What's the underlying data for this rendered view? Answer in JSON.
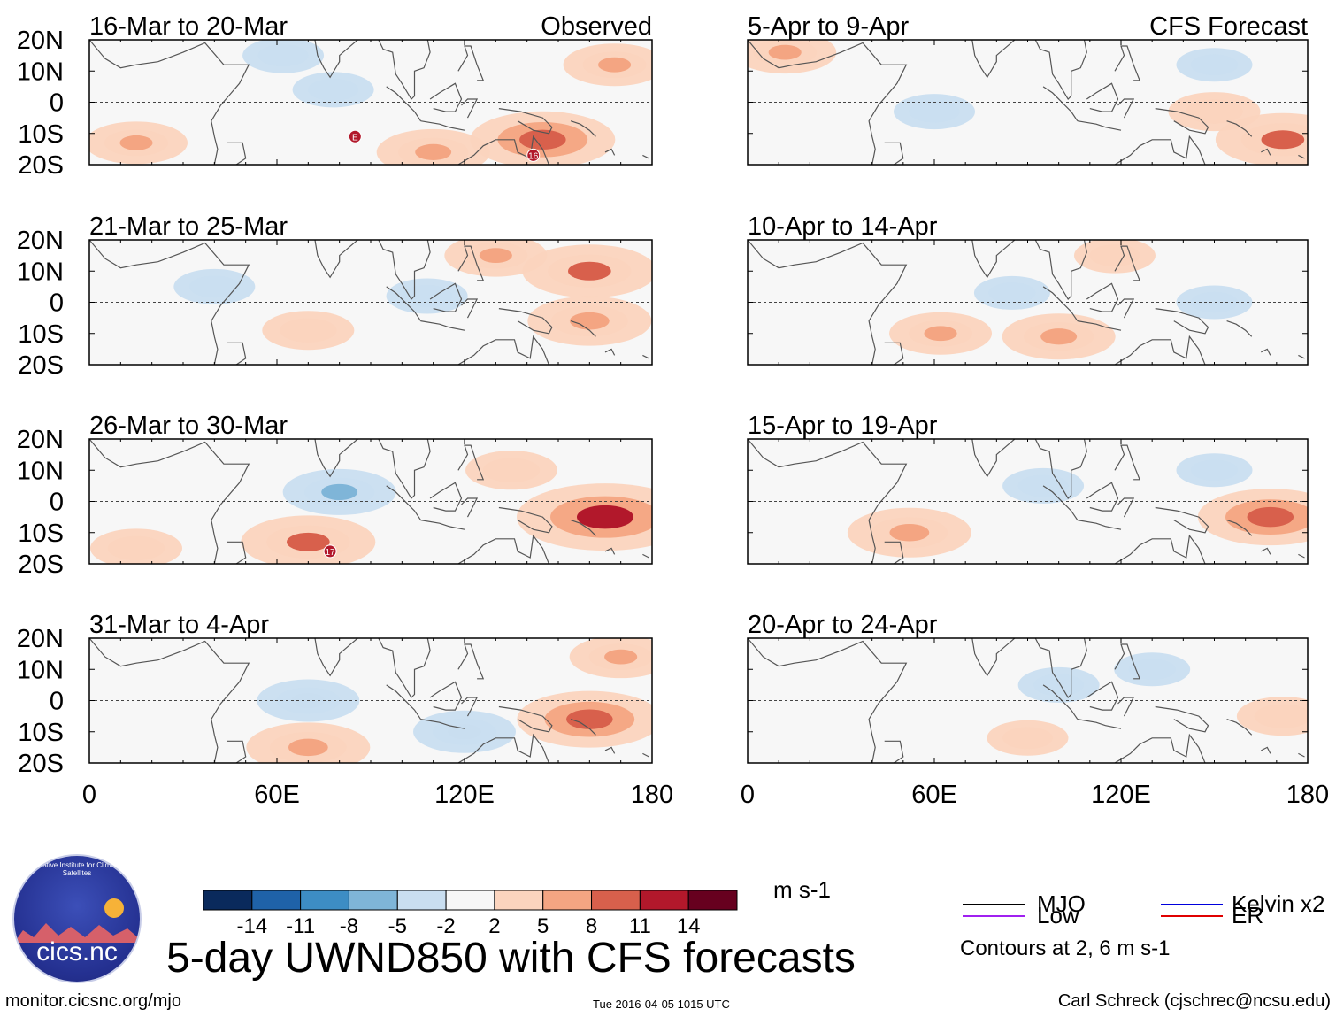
{
  "title": "5-day UWND850 with CFS forecasts",
  "site_url": "monitor.cicsnc.org/mjo",
  "timestamp": "Tue 2016-04-05 1015 UTC",
  "author": "Carl Schreck (cjschrec@ncsu.edu)",
  "logo": {
    "name": "cics.nc",
    "ring_text": "Cooperative Institute for Climate and Satellites"
  },
  "colorbar": {
    "units": "m s-1",
    "tick_labels": [
      "-14",
      "-11",
      "-8",
      "-5",
      "-2",
      "2",
      "5",
      "8",
      "11",
      "14"
    ],
    "colors": [
      "#0a2a5c",
      "#1f62a8",
      "#3d8dc4",
      "#7fb5d8",
      "#c9def0",
      "#f7f7f7",
      "#fbd4be",
      "#f4a582",
      "#d8604c",
      "#b2182b",
      "#67001f"
    ]
  },
  "legend": {
    "items": [
      {
        "label": "MJO",
        "color": "#000000"
      },
      {
        "label": "Kelvin x2",
        "color": "#0000dd"
      },
      {
        "label": "Low",
        "color": "#a020f0"
      },
      {
        "label": "ER",
        "color": "#e00000"
      }
    ],
    "contour_note": "Contours at 2, 6 m s-1"
  },
  "chart_data": {
    "type": "heatmap",
    "variable": "850-hPa zonal wind anomaly, 5-day mean",
    "column_headers": {
      "left": "Observed",
      "right": "CFS Forecast"
    },
    "x_ticks": [
      "0",
      "60E",
      "120E",
      "180"
    ],
    "x_range": [
      0,
      180
    ],
    "y_ticks": [
      "20N",
      "10N",
      "0",
      "10S",
      "20S"
    ],
    "y_range": [
      -20,
      20
    ],
    "panels": [
      {
        "column": "left",
        "period": "16-Mar to 20-Mar",
        "storm_labels": [
          {
            "text": "E",
            "lon": 85,
            "lat": -11
          },
          {
            "text": "16",
            "lon": 142,
            "lat": -17
          }
        ],
        "blobs": [
          {
            "lon": 145,
            "lat": -12,
            "value": 9
          },
          {
            "lon": 110,
            "lat": -16,
            "value": 6
          },
          {
            "lon": 168,
            "lat": 12,
            "value": 5
          },
          {
            "lon": 15,
            "lat": -13,
            "value": 5
          },
          {
            "lon": 78,
            "lat": 4,
            "value": -3
          },
          {
            "lon": 62,
            "lat": 15,
            "value": -3
          }
        ]
      },
      {
        "column": "left",
        "period": "21-Mar to 25-Mar",
        "storm_labels": [],
        "blobs": [
          {
            "lon": 160,
            "lat": 10,
            "value": 8
          },
          {
            "lon": 130,
            "lat": 15,
            "value": 5
          },
          {
            "lon": 160,
            "lat": -6,
            "value": 7
          },
          {
            "lon": 70,
            "lat": -9,
            "value": 4
          },
          {
            "lon": 40,
            "lat": 5,
            "value": -3
          },
          {
            "lon": 108,
            "lat": 2,
            "value": -3
          }
        ]
      },
      {
        "column": "left",
        "period": "26-Mar to 30-Mar",
        "storm_labels": [
          {
            "text": "17",
            "lon": 77,
            "lat": -16
          }
        ],
        "blobs": [
          {
            "lon": 165,
            "lat": -5,
            "value": 12
          },
          {
            "lon": 70,
            "lat": -13,
            "value": 8
          },
          {
            "lon": 80,
            "lat": 3,
            "value": -6
          },
          {
            "lon": 135,
            "lat": 10,
            "value": 4
          },
          {
            "lon": 15,
            "lat": -15,
            "value": 4
          }
        ]
      },
      {
        "column": "left",
        "period": "31-Mar to 4-Apr",
        "storm_labels": [],
        "blobs": [
          {
            "lon": 160,
            "lat": -6,
            "value": 9
          },
          {
            "lon": 70,
            "lat": -15,
            "value": 7
          },
          {
            "lon": 70,
            "lat": 0,
            "value": -5
          },
          {
            "lon": 120,
            "lat": -10,
            "value": -5
          },
          {
            "lon": 170,
            "lat": 14,
            "value": 5
          }
        ]
      },
      {
        "column": "right",
        "period": "5-Apr to 9-Apr",
        "storm_labels": [],
        "blobs": [
          {
            "lon": 172,
            "lat": -12,
            "value": 8
          },
          {
            "lon": 150,
            "lat": -3,
            "value": 4
          },
          {
            "lon": 12,
            "lat": 16,
            "value": 5
          },
          {
            "lon": 60,
            "lat": -3,
            "value": -3
          },
          {
            "lon": 150,
            "lat": 12,
            "value": -2.5
          }
        ]
      },
      {
        "column": "right",
        "period": "10-Apr to 14-Apr",
        "storm_labels": [],
        "blobs": [
          {
            "lon": 100,
            "lat": -11,
            "value": 6
          },
          {
            "lon": 62,
            "lat": -10,
            "value": 5
          },
          {
            "lon": 118,
            "lat": 15,
            "value": 3
          },
          {
            "lon": 150,
            "lat": 0,
            "value": -2.5
          },
          {
            "lon": 85,
            "lat": 3,
            "value": -2.5
          }
        ]
      },
      {
        "column": "right",
        "period": "15-Apr to 19-Apr",
        "storm_labels": [],
        "blobs": [
          {
            "lon": 168,
            "lat": -5,
            "value": 9
          },
          {
            "lon": 52,
            "lat": -10,
            "value": 7
          },
          {
            "lon": 150,
            "lat": 10,
            "value": -2.5
          },
          {
            "lon": 95,
            "lat": 5,
            "value": -3
          }
        ]
      },
      {
        "column": "right",
        "period": "20-Apr to 24-Apr",
        "storm_labels": [],
        "blobs": [
          {
            "lon": 90,
            "lat": -12,
            "value": 3
          },
          {
            "lon": 172,
            "lat": -5,
            "value": 4
          },
          {
            "lon": 130,
            "lat": 10,
            "value": -2.5
          },
          {
            "lon": 100,
            "lat": 5,
            "value": -3
          }
        ]
      }
    ]
  }
}
